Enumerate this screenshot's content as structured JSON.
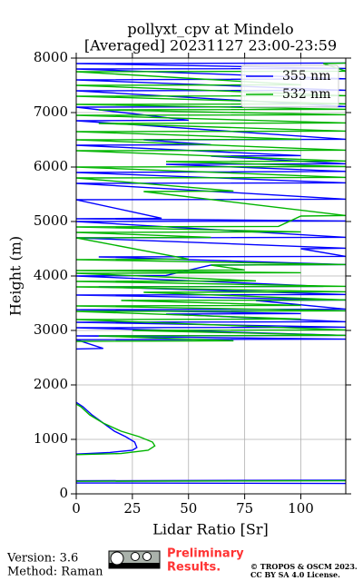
{
  "chart_data": {
    "type": "profile",
    "title": [
      "pollyxt_cpv at Mindelo",
      "[Averaged] 20231127 23:00-23:59"
    ],
    "xlabel": "Lidar Ratio [Sr]",
    "ylabel": "Height (m)",
    "xlim": [
      0,
      120
    ],
    "ylim": [
      0,
      8000
    ],
    "xticks": [
      0,
      25,
      50,
      75,
      100
    ],
    "yticks": [
      0,
      1000,
      2000,
      3000,
      4000,
      5000,
      6000,
      7000,
      8000
    ],
    "grid": true,
    "legend": "upper right",
    "series": [
      {
        "name": "355 nm",
        "color": "#0000ff",
        "heights": [
          190,
          200,
          240,
          250,
          null,
          730,
          760,
          800,
          850,
          950,
          1050,
          1150,
          1300,
          1450,
          1600,
          1680,
          null,
          2660,
          2670,
          2830,
          2840,
          2900,
          2910,
          3050,
          3060,
          3150,
          3160,
          3300,
          3310,
          3380,
          3390,
          3550,
          3560,
          3650,
          3660,
          3800,
          3810,
          4000,
          4010,
          4200,
          4210,
          4350,
          4360,
          4500,
          4510,
          4700,
          4710,
          5000,
          5010,
          5050,
          5060,
          5400,
          5410,
          5700,
          5710,
          5900,
          5920,
          6050,
          6060,
          6200,
          6210,
          6400,
          6410,
          6500,
          6510,
          6850,
          6860,
          7100,
          7110,
          7400,
          7410,
          7600,
          7620,
          7800,
          7810,
          7900,
          7910
        ],
        "values": [
          120,
          0,
          0,
          120,
          null,
          0,
          15,
          25,
          27,
          26,
          22,
          17,
          12,
          7,
          3,
          0,
          null,
          0,
          12,
          0,
          120,
          0,
          120,
          0,
          120,
          0,
          120,
          40,
          100,
          0,
          120,
          80,
          120,
          0,
          120,
          10,
          110,
          0,
          40,
          60,
          120,
          10,
          120,
          100,
          120,
          0,
          120,
          0,
          120,
          0,
          38,
          0,
          120,
          0,
          120,
          0,
          120,
          40,
          120,
          60,
          100,
          0,
          60,
          30,
          120,
          0,
          50,
          0,
          120,
          0,
          120,
          0,
          120,
          0,
          120,
          0,
          120
        ]
      },
      {
        "name": "532 nm",
        "color": "#00b400",
        "heights": [
          230,
          240,
          null,
          720,
          740,
          800,
          880,
          950,
          1050,
          1150,
          1300,
          1450,
          1600,
          1650,
          null,
          2800,
          2810,
          2900,
          2910,
          3000,
          3010,
          3200,
          3210,
          3350,
          3360,
          3450,
          3460,
          3550,
          3560,
          3700,
          3710,
          3800,
          3810,
          3900,
          3910,
          4050,
          4060,
          4100,
          4110,
          4200,
          4210,
          4300,
          4310,
          4700,
          4710,
          4800,
          4810,
          4900,
          4910,
          5100,
          5110,
          5550,
          5560,
          5800,
          5810,
          6000,
          6010,
          6100,
          6110,
          6300,
          6310,
          6500,
          6510,
          6650,
          6660,
          6800,
          6810,
          6950,
          6960,
          7050,
          7060,
          7150,
          7160,
          7300,
          7310,
          7500,
          7510,
          7750,
          7760,
          7900,
          7910
        ],
        "values": [
          0,
          120,
          null,
          0,
          20,
          32,
          35,
          34,
          28,
          20,
          12,
          6,
          2,
          0,
          null,
          0,
          70,
          10,
          120,
          25,
          120,
          0,
          100,
          0,
          120,
          0,
          100,
          20,
          120,
          30,
          120,
          0,
          120,
          0,
          80,
          0,
          100,
          0,
          75,
          60,
          120,
          0,
          50,
          0,
          60,
          0,
          100,
          0,
          90,
          100,
          120,
          30,
          70,
          0,
          120,
          0,
          120,
          40,
          120,
          0,
          120,
          0,
          100,
          0,
          120,
          10,
          120,
          0,
          120,
          10,
          120,
          0,
          120,
          0,
          120,
          0,
          100,
          0,
          120,
          110,
          120
        ]
      }
    ]
  },
  "footer": {
    "version": "Version: 3.6",
    "method": "Method: Raman",
    "status": [
      "Preliminary",
      "Results."
    ],
    "copyright": [
      "© TROPOS & OSCM 2023.",
      "CC BY SA 4.0 License."
    ]
  }
}
